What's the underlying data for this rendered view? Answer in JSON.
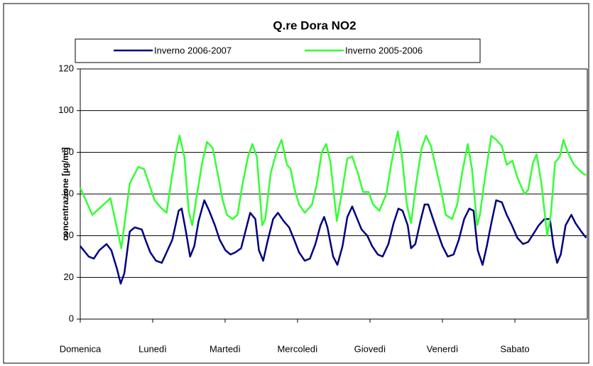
{
  "chart_data": {
    "type": "line",
    "title": "Q.re Dora NO2",
    "ylabel": "concentrazione [µg/m³]",
    "xlim": [
      0,
      168
    ],
    "xticks": [
      {
        "value": 0,
        "label": "Domenica"
      },
      {
        "value": 24,
        "label": "Lunedì"
      },
      {
        "value": 48,
        "label": "Martedì"
      },
      {
        "value": 72,
        "label": "Mercoledì"
      },
      {
        "value": 96,
        "label": "Giovedì"
      },
      {
        "value": 120,
        "label": "Venerdì"
      },
      {
        "value": 144,
        "label": "Sabato"
      }
    ],
    "ylim": [
      0,
      120
    ],
    "yticks": [
      0,
      20,
      40,
      60,
      80,
      100,
      120
    ],
    "grid": true,
    "legend": "top",
    "series": [
      {
        "name": "Inverno 2006-2007",
        "color": "#000080",
        "x": [
          0,
          2.8,
          4.5,
          6.3,
          8.7,
          10.3,
          12.2,
          13.4,
          14.6,
          16.4,
          18.1,
          20.4,
          21.6,
          23.2,
          25.1,
          27,
          28.6,
          30.5,
          32.6,
          33.6,
          35,
          36.4,
          37.8,
          39.2,
          41.1,
          42.7,
          44.6,
          46.2,
          48.1,
          49.8,
          51.4,
          53.3,
          54.7,
          56.3,
          58,
          59.2,
          60.6,
          62,
          63.9,
          65.5,
          67.4,
          69.2,
          70.9,
          72.5,
          74.4,
          76.1,
          77.9,
          79.6,
          80.8,
          81.9,
          83.8,
          85.2,
          86.9,
          88.5,
          90.1,
          91.5,
          93.2,
          95.1,
          96.7,
          98.6,
          100.2,
          102.1,
          103.8,
          105.4,
          106.8,
          108.5,
          109.6,
          111,
          112.7,
          114.1,
          115.3,
          116.9,
          118.3,
          120,
          121.8,
          123.7,
          125.4,
          127.2,
          128.9,
          130.3,
          131.7,
          133.3,
          134.7,
          136.2,
          137.8,
          139.7,
          141.3,
          143,
          144.8,
          146.7,
          148.4,
          150.2,
          151.9,
          153.8,
          155.6,
          156.8,
          158,
          159.2,
          160.8,
          162.7,
          164.1,
          166,
          167.6
        ],
        "values": [
          35,
          30,
          29,
          33,
          36,
          33,
          24,
          17,
          22,
          42,
          44,
          43,
          38,
          32,
          28,
          27,
          32,
          38,
          52,
          53,
          42,
          30,
          35,
          47,
          57,
          52,
          45,
          38,
          33,
          31,
          32,
          34,
          42,
          51,
          48,
          33,
          28,
          37,
          48,
          51,
          47,
          44,
          38,
          32,
          28,
          29,
          36,
          45,
          49,
          44,
          30,
          26,
          35,
          49,
          54,
          49,
          43,
          40,
          35,
          31,
          30,
          36,
          46,
          53,
          52,
          45,
          34,
          36,
          47,
          55,
          55,
          48,
          42,
          35,
          30,
          31,
          38,
          48,
          53,
          52,
          33,
          26,
          35,
          46,
          57,
          56,
          50,
          45,
          39,
          36,
          37,
          41,
          45,
          48,
          48,
          35,
          27,
          31,
          45,
          50,
          46,
          42,
          39
        ]
      },
      {
        "name": "Inverno 2005-2006",
        "color": "#33ff33",
        "x": [
          0,
          4,
          10,
          13.6,
          16.4,
          19.2,
          21.1,
          22.8,
          24.6,
          27,
          28.6,
          30,
          31.7,
          32.9,
          34.5,
          35.9,
          37.1,
          38.7,
          40.4,
          42,
          43.9,
          45.5,
          47.2,
          48.6,
          50.5,
          52.1,
          53.8,
          55.6,
          57,
          58.5,
          60.3,
          61.3,
          63.1,
          65,
          66.7,
          68.5,
          69.7,
          70.9,
          72.5,
          74.4,
          76.8,
          78.4,
          80,
          81.5,
          82.9,
          85,
          86.6,
          88.5,
          90.1,
          92,
          93.7,
          95.5,
          97,
          99.1,
          101.4,
          103.1,
          105.2,
          106.6,
          108.2,
          109.6,
          111.3,
          113.1,
          114.6,
          116.2,
          117.8,
          119.5,
          121.1,
          123.2,
          124.9,
          126.5,
          128.4,
          129.8,
          131.5,
          132.4,
          134.3,
          136.2,
          137.8,
          139.7,
          141.3,
          143.2,
          144.8,
          147.2,
          148.4,
          150,
          151.2,
          152.8,
          154.7,
          155.9,
          157.3,
          158.9,
          160.1,
          161.5,
          163.6,
          166.4,
          167.6
        ],
        "values": [
          63,
          50,
          58,
          34,
          65,
          73,
          72,
          65,
          57,
          53,
          51,
          65,
          80,
          88,
          78,
          52,
          45,
          60,
          75,
          85,
          82,
          70,
          57,
          50,
          48,
          50,
          65,
          78,
          84,
          78,
          45,
          48,
          70,
          80,
          86,
          74,
          72,
          63,
          55,
          51,
          55,
          65,
          80,
          84,
          75,
          47,
          60,
          77,
          78,
          70,
          61,
          61,
          55,
          52,
          60,
          75,
          90,
          78,
          55,
          46,
          65,
          82,
          88,
          83,
          73,
          62,
          50,
          48,
          55,
          70,
          84,
          72,
          45,
          50,
          70,
          88,
          86,
          83,
          74,
          76,
          68,
          60,
          62,
          75,
          79,
          65,
          40,
          50,
          75,
          78,
          86,
          80,
          74,
          70,
          69
        ]
      }
    ]
  }
}
